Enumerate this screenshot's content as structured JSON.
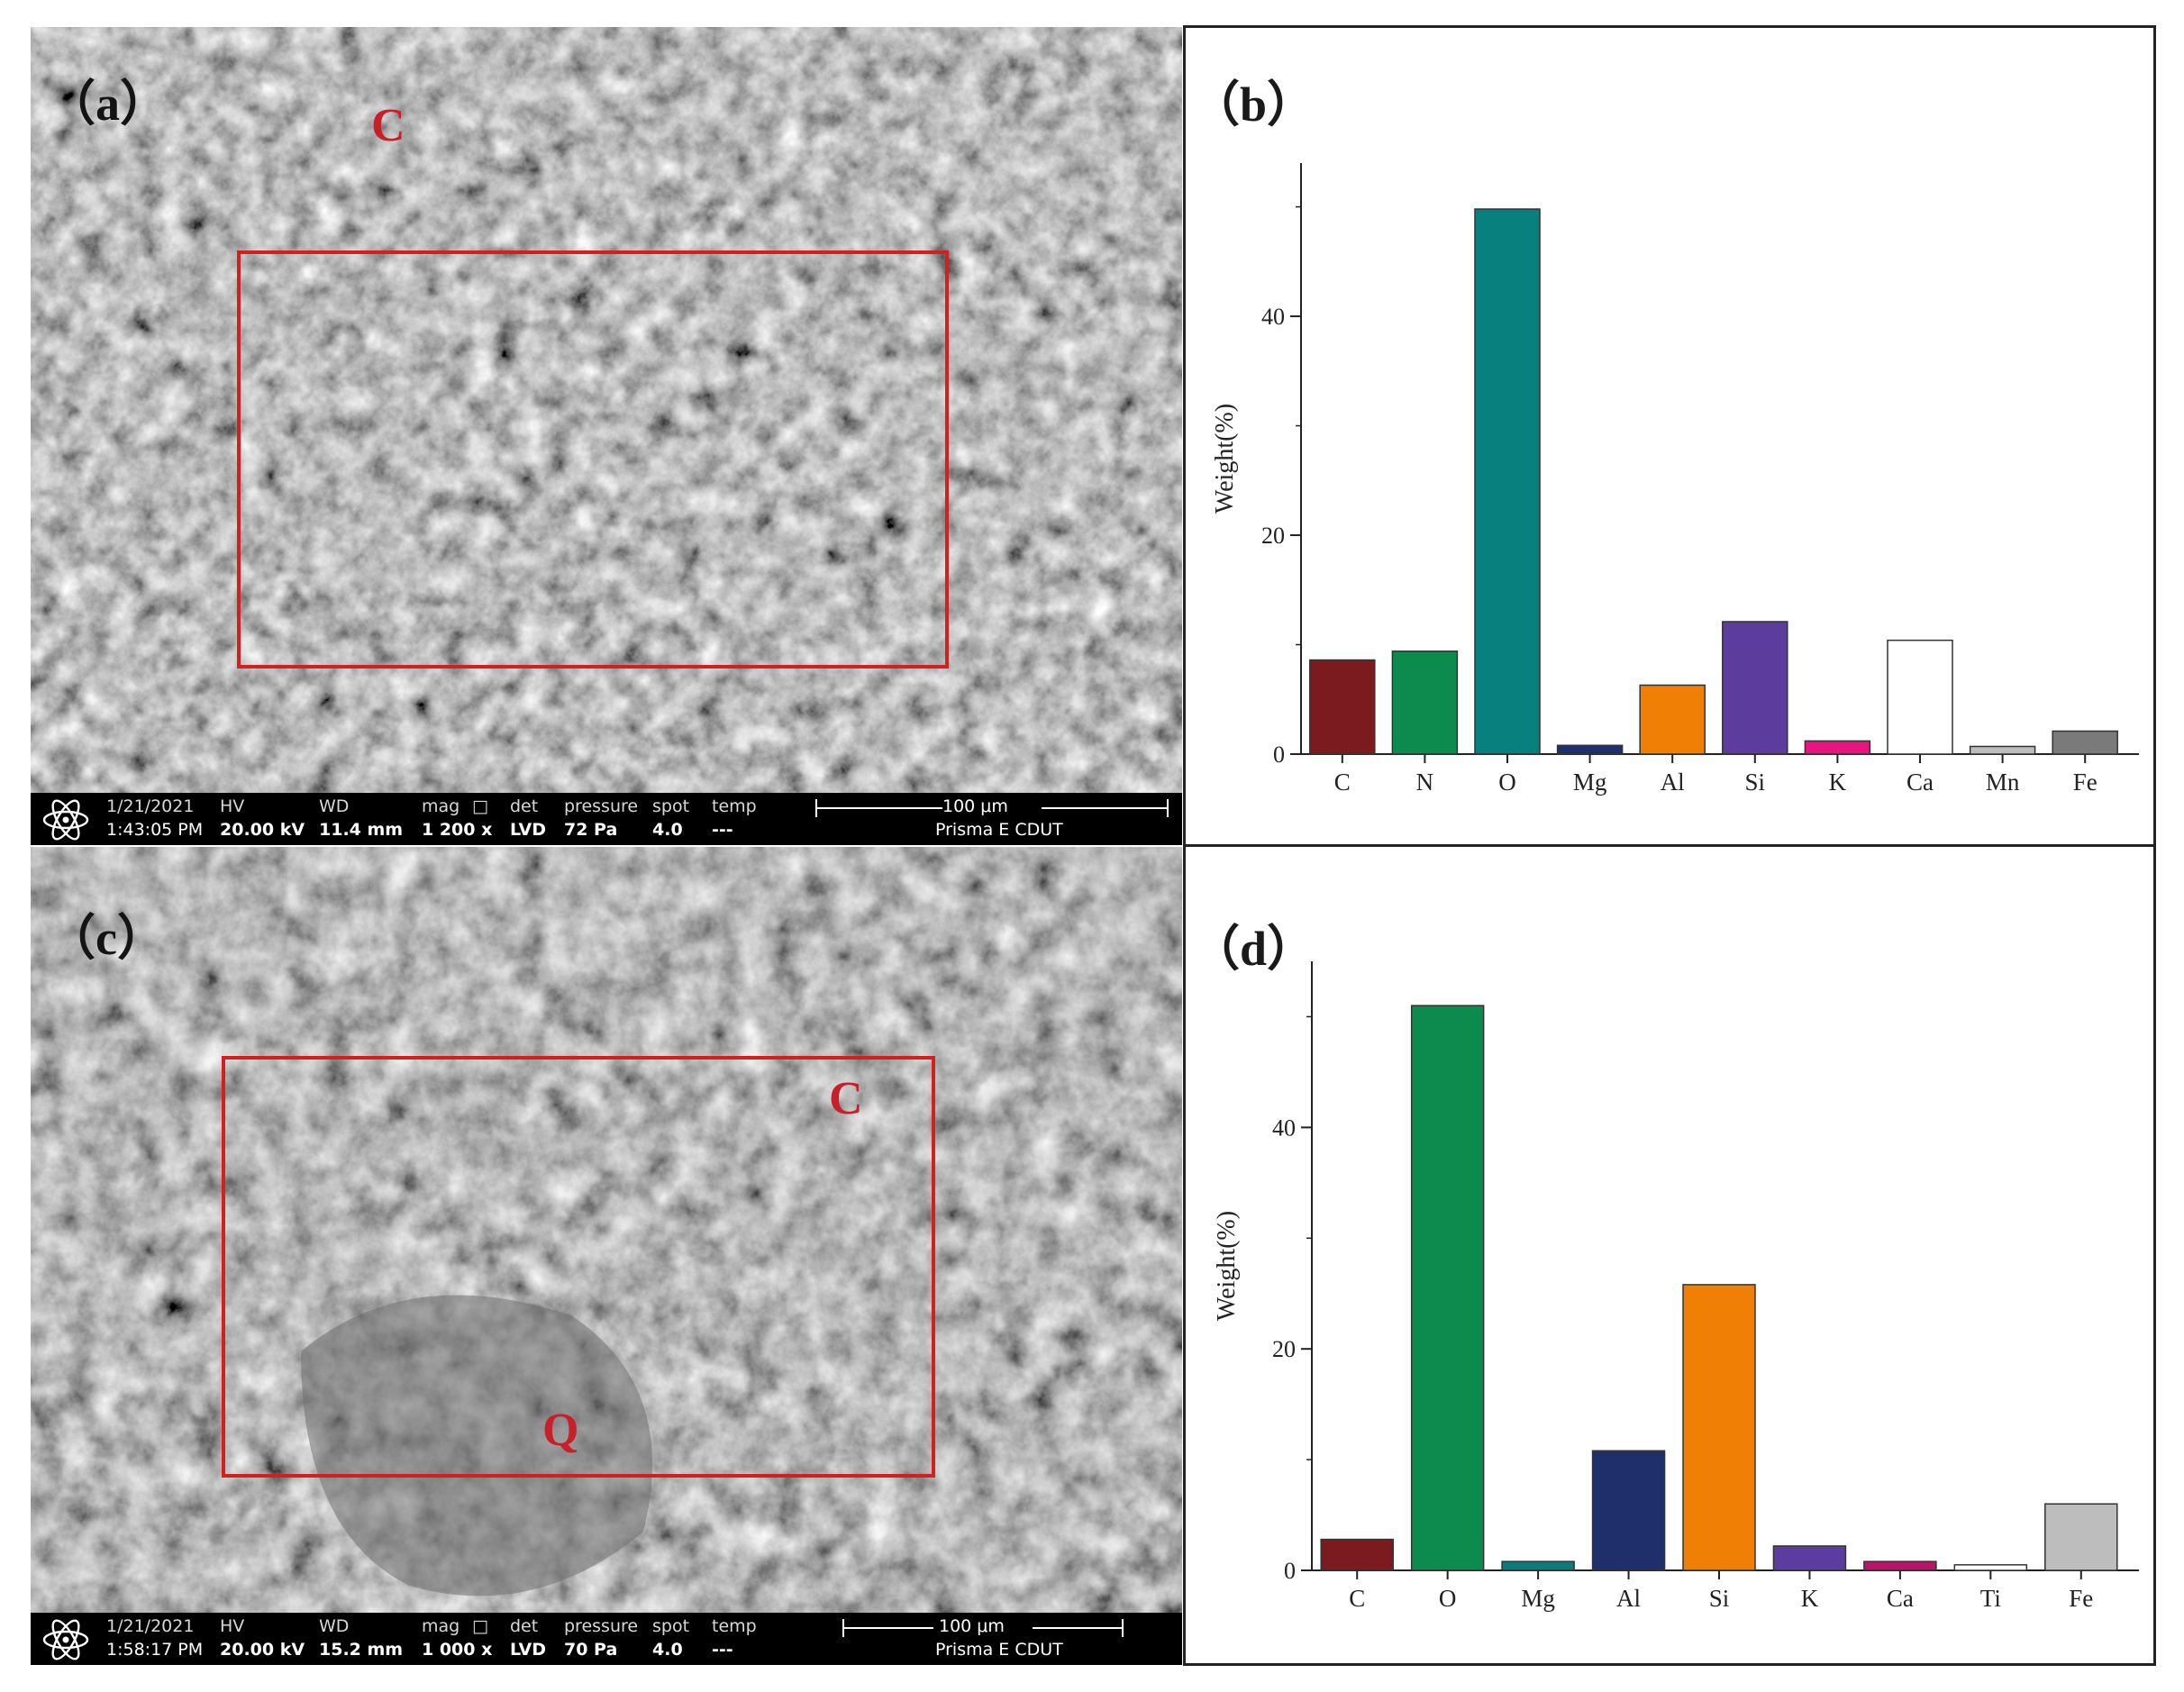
{
  "panels": {
    "a": {
      "label": "（a）",
      "mark": "C",
      "infobar": {
        "date": "1/21/2021",
        "time": "1:43:05 PM",
        "hv_label": "HV",
        "hv": "20.00 kV",
        "wd_label": "WD",
        "wd": "11.4 mm",
        "mag_label": "mag",
        "mag": "1 200 x",
        "det_label": "det",
        "det": "LVD",
        "pressure_label": "pressure",
        "pressure": "72 Pa",
        "spot_label": "spot",
        "spot": "4.0",
        "temp_label": "temp",
        "temp": "---",
        "scale": "100 μm",
        "instrument": "Prisma E CDUT"
      }
    },
    "b": {
      "label": "（b）"
    },
    "c": {
      "label": "（c）",
      "mark_c": "C",
      "mark_q": "Q",
      "infobar": {
        "date": "1/21/2021",
        "time": "1:58:17 PM",
        "hv_label": "HV",
        "hv": "20.00 kV",
        "wd_label": "WD",
        "wd": "15.2 mm",
        "mag_label": "mag",
        "mag": "1 000 x",
        "det_label": "det",
        "det": "LVD",
        "pressure_label": "pressure",
        "pressure": "70 Pa",
        "spot_label": "spot",
        "spot": "4.0",
        "temp_label": "temp",
        "temp": "---",
        "scale": "100 μm",
        "instrument": "Prisma E CDUT"
      }
    },
    "d": {
      "label": "（d）"
    }
  },
  "chart_data": [
    {
      "panel": "b",
      "type": "bar",
      "ylabel": "Weight(%)",
      "xlabel": "",
      "ylim": [
        0,
        54
      ],
      "yticks": [
        0,
        20,
        40
      ],
      "categories": [
        "C",
        "N",
        "O",
        "Mg",
        "Al",
        "Si",
        "K",
        "Ca",
        "Mn",
        "Fe"
      ],
      "values": [
        8.6,
        9.4,
        49.8,
        0.8,
        6.3,
        12.1,
        1.2,
        10.4,
        0.7,
        2.1
      ],
      "colors": [
        "#7b1a1f",
        "#0d8a4e",
        "#07807e",
        "#1e2f6b",
        "#f07f06",
        "#5c3c9d",
        "#e8157f",
        "#ffffff",
        "#bdbdbd",
        "#7a7a7a"
      ]
    },
    {
      "panel": "d",
      "type": "bar",
      "ylabel": "Weight(%)",
      "xlabel": "",
      "ylim": [
        0,
        55
      ],
      "yticks": [
        0,
        20,
        40
      ],
      "categories": [
        "C",
        "O",
        "Mg",
        "Al",
        "Si",
        "K",
        "Ca",
        "Ti",
        "Fe"
      ],
      "values": [
        2.8,
        51.0,
        0.8,
        10.8,
        25.8,
        2.2,
        0.8,
        0.5,
        6.0
      ],
      "colors": [
        "#7b1a1f",
        "#0d8a4e",
        "#0f7a7a",
        "#1e2f6b",
        "#f07f06",
        "#5c3c9d",
        "#b8156a",
        "#ffffff",
        "#bdbdbd"
      ]
    }
  ]
}
